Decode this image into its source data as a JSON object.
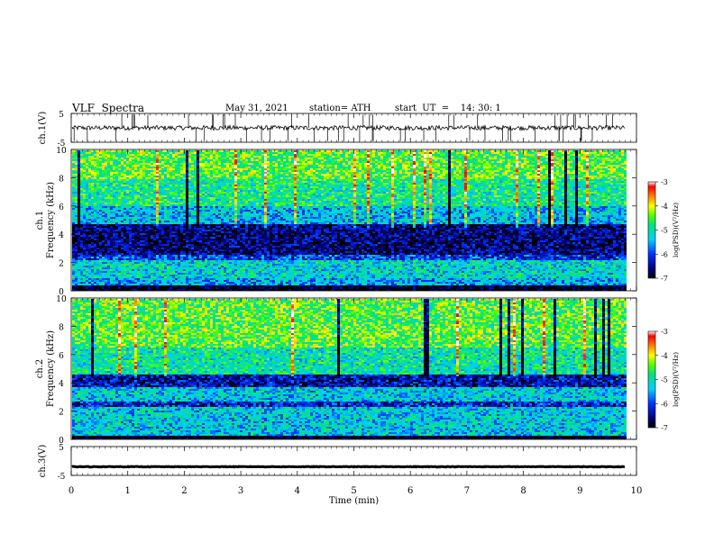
{
  "header": {
    "title": "VLF  Spectra",
    "date": "May 31, 2021",
    "station": "station= ATH",
    "start_ut": "start  UT  =    14: 30: 1"
  },
  "chart_data": [
    {
      "type": "line",
      "panel": "ch1-waveform",
      "ylabel": "ch.1(V)",
      "ylim": [
        -5,
        5
      ],
      "yticks": [
        "5",
        "-5"
      ],
      "xlim": [
        0,
        10
      ],
      "description_values": {
        "baseline": 0,
        "noise_amplitude": 0.8,
        "spikes": true
      },
      "color": "#000000"
    },
    {
      "type": "heatmap",
      "panel": "ch1-spectrogram",
      "ylabel_top": "ch.1",
      "ylabel": "Frequency  (kHz)",
      "ylim": [
        0,
        10
      ],
      "yticks": [
        "0",
        "2",
        "4",
        "6",
        "8",
        "10"
      ],
      "xlim": [
        0,
        9.8
      ],
      "colorbar": {
        "label": "log(PSD)(V²/Hz)",
        "range": [
          -7,
          -3
        ],
        "ticks": [
          "-3",
          "-4",
          "-5",
          "-6",
          "-7"
        ]
      },
      "bands_khz": [
        {
          "from": 0,
          "to": 0.4,
          "level": -7
        },
        {
          "from": 0.4,
          "to": 1.0,
          "level": -5.5
        },
        {
          "from": 1.0,
          "to": 2.2,
          "level": -5.2
        },
        {
          "from": 2.2,
          "to": 2.6,
          "level": -6.0
        },
        {
          "from": 2.6,
          "to": 4.8,
          "level": -6.6
        },
        {
          "from": 4.8,
          "to": 6.0,
          "level": -5.4
        },
        {
          "from": 6.0,
          "to": 8.0,
          "level": -4.9
        },
        {
          "from": 8.0,
          "to": 10.0,
          "level": -4.5
        }
      ]
    },
    {
      "type": "heatmap",
      "panel": "ch2-spectrogram",
      "ylabel_top": "ch.2",
      "ylabel": "Frequency  (kHz)",
      "ylim": [
        0,
        10
      ],
      "yticks": [
        "0",
        "2",
        "4",
        "6",
        "8",
        "10"
      ],
      "xlim": [
        0,
        9.8
      ],
      "colorbar": {
        "label": "log(PSD)(V²/Hz)",
        "range": [
          -7,
          -3
        ],
        "ticks": [
          "-3",
          "-4",
          "-5",
          "-6",
          "-7"
        ]
      },
      "bands_khz": [
        {
          "from": 0,
          "to": 0.3,
          "level": -7
        },
        {
          "from": 0.3,
          "to": 2.4,
          "level": -5.3
        },
        {
          "from": 2.4,
          "to": 2.8,
          "level": -6.2
        },
        {
          "from": 2.8,
          "to": 3.8,
          "level": -5.3
        },
        {
          "from": 3.8,
          "to": 4.6,
          "level": -6.4
        },
        {
          "from": 4.6,
          "to": 6.5,
          "level": -5.0
        },
        {
          "from": 6.5,
          "to": 10.0,
          "level": -4.5
        }
      ]
    },
    {
      "type": "line",
      "panel": "ch3-waveform",
      "ylabel": "ch.3(V)",
      "ylim": [
        -5,
        5
      ],
      "yticks": [
        "5",
        "-5"
      ],
      "xlabel": "Time  (min)",
      "xlim": [
        0,
        10
      ],
      "xticks": [
        "0",
        "1",
        "2",
        "3",
        "4",
        "5",
        "6",
        "7",
        "8",
        "9",
        "10"
      ],
      "description_values": {
        "baseline": -2,
        "noise_amplitude": 0.1
      },
      "color": "#000000"
    }
  ]
}
